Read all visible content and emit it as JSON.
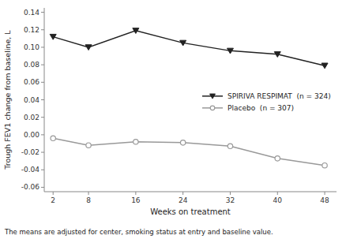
{
  "chart_data": {
    "type": "line",
    "x": [
      2,
      8,
      16,
      24,
      32,
      40,
      48
    ],
    "series": [
      {
        "name": "SPIRIVA RESPIMAT  (n = 324)",
        "color": "#222222",
        "marker": "triangle-down",
        "values": [
          0.112,
          0.1,
          0.119,
          0.105,
          0.096,
          0.092,
          0.079
        ]
      },
      {
        "name": "Placebo  (n = 307)",
        "color": "#999999",
        "marker": "circle",
        "values": [
          -0.004,
          -0.012,
          -0.008,
          -0.009,
          -0.013,
          -0.027,
          -0.035
        ]
      }
    ],
    "xlabel": "Weeks on treatment",
    "ylabel": "Trough FEV1 change from baseline, L",
    "annotations": [
      "The means are adjusted for center, smoking status at entry and baseline value."
    ],
    "xlim": [
      0.5,
      50
    ],
    "xticks": [
      2,
      8,
      16,
      24,
      32,
      40,
      48
    ],
    "ylim": [
      -0.065,
      0.145
    ],
    "yticks": [
      -0.06,
      -0.04,
      -0.02,
      {
        "value": 0,
        "label": "0.00"
      },
      0.02,
      0.04,
      0.06,
      0.08,
      {
        "value": 0.1,
        "label": "0.10"
      },
      0.12,
      0.14
    ],
    "legend": "right",
    "grid": false
  }
}
